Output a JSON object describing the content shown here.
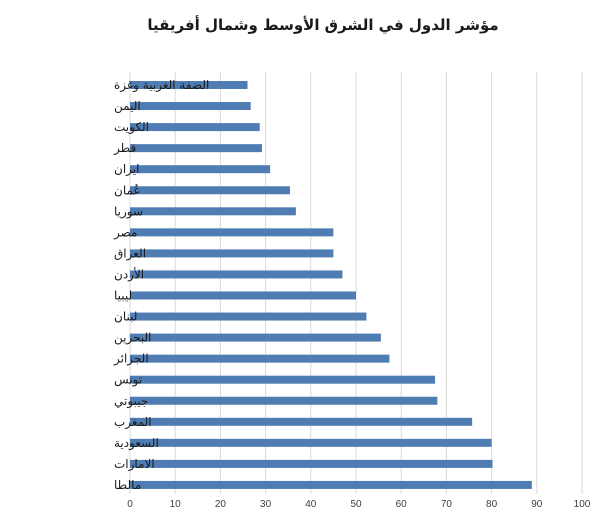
{
  "chart_data": {
    "type": "bar",
    "orientation": "horizontal",
    "title": "مؤشر الدول في الشرق الأوسط وشمال أفريقيا",
    "xlabel": "",
    "ylabel": "",
    "categories": [
      "الضفة الغربية وغزة",
      "اليمن",
      "الكويت",
      "قطر",
      "ايران",
      "عُمان",
      "سوريا",
      "مصر",
      "العراق",
      "الأردن",
      "ليبيا",
      "لبنان",
      "البحرين",
      "الجزائر",
      "تونس",
      "جيبوتي",
      "المغرب",
      "السعودية",
      "الامارات",
      "مالطا"
    ],
    "values": [
      26,
      26.7,
      28.7,
      29.2,
      31,
      35.4,
      36.7,
      45,
      45,
      47,
      50,
      52.3,
      55.5,
      57.4,
      67.5,
      68,
      75.7,
      80,
      80.2,
      88.9
    ],
    "xlim": [
      0,
      100
    ],
    "xticks": [
      "0",
      "10",
      "20",
      "30",
      "40",
      "50",
      "60",
      "70",
      "80",
      "90",
      "100"
    ],
    "grid": "vertical",
    "legend": "none",
    "bar_color": "#4f7db3",
    "grid_color": "#d9d9d9"
  }
}
